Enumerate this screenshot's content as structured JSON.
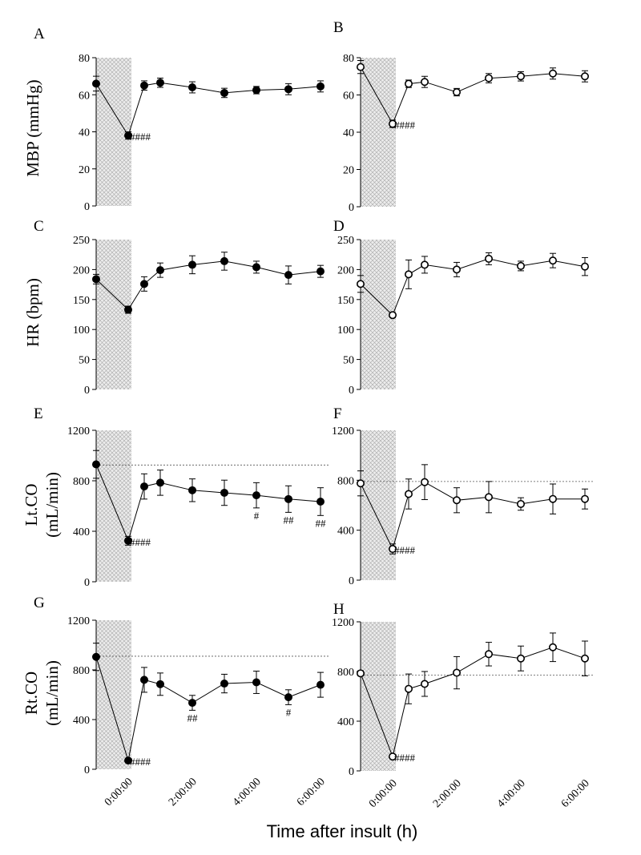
{
  "xlabel": "Time after insult (h)",
  "x_tick_labels": [
    "0:00:00",
    "2:00:00",
    "4:00:00",
    "6:00:00"
  ],
  "x_tick_values": [
    0,
    2,
    4,
    6
  ],
  "x_range": [
    -1,
    6
  ],
  "shaded_interval": [
    -1,
    0.1
  ],
  "ylabels": {
    "mbp": "MBP (mmHg)",
    "hr": "HR (bpm)",
    "co_lt_1": "Lt.CO",
    "co_lt_2": "(mL/min)",
    "co_rt_1": "Rt.CO",
    "co_rt_2": "(mL/min)"
  },
  "chart_data": [
    {
      "panel": "A",
      "type": "line",
      "marker": "filled",
      "ylim": [
        0,
        80
      ],
      "yticks": [
        0,
        20,
        40,
        60,
        80
      ],
      "y_tick_labels": [
        "0",
        "20",
        "40",
        "60",
        "80"
      ],
      "x": [
        -1,
        0,
        0.5,
        1,
        2,
        3,
        4,
        5,
        6
      ],
      "y": [
        66,
        38,
        65,
        66.5,
        64,
        61,
        62.5,
        63,
        64.5
      ],
      "err": [
        4,
        2,
        2.5,
        2.5,
        3,
        2.5,
        2,
        3,
        3
      ],
      "annotations": [
        {
          "text": "####",
          "x": 0,
          "y": 38
        }
      ]
    },
    {
      "panel": "B",
      "type": "line",
      "marker": "open",
      "ylim": [
        0,
        80
      ],
      "yticks": [
        0,
        20,
        40,
        60,
        80
      ],
      "y_tick_labels": [
        "0",
        "20",
        "40",
        "60",
        "80"
      ],
      "x": [
        -1,
        0,
        0.5,
        1,
        2,
        3,
        4,
        5,
        6
      ],
      "y": [
        75,
        44.5,
        66,
        67,
        61.5,
        69,
        70,
        71.5,
        70
      ],
      "err": [
        3.5,
        2,
        2,
        3,
        2,
        2.5,
        2.5,
        3,
        3
      ],
      "annotations": [
        {
          "text": "####",
          "x": 0,
          "y": 44.5
        }
      ]
    },
    {
      "panel": "C",
      "type": "line",
      "marker": "filled",
      "ylim": [
        0,
        250
      ],
      "yticks": [
        0,
        50,
        100,
        150,
        200,
        250
      ],
      "y_tick_labels": [
        "0",
        "50",
        "100",
        "150",
        "200",
        "250"
      ],
      "x": [
        -1,
        0,
        0.5,
        1,
        2,
        3,
        4,
        5,
        6
      ],
      "y": [
        184,
        133,
        176,
        199,
        208,
        214,
        204,
        191,
        197
      ],
      "err": [
        8,
        6,
        12,
        12,
        15,
        15,
        10,
        15,
        10
      ],
      "annotations": []
    },
    {
      "panel": "D",
      "type": "line",
      "marker": "open",
      "ylim": [
        0,
        250
      ],
      "yticks": [
        0,
        50,
        100,
        150,
        200,
        250
      ],
      "y_tick_labels": [
        "0",
        "50",
        "100",
        "150",
        "200",
        "250"
      ],
      "x": [
        -1,
        0,
        0.5,
        1,
        2,
        3,
        4,
        5,
        6
      ],
      "y": [
        176,
        124,
        192,
        208,
        200,
        218,
        206,
        215,
        205
      ],
      "err": [
        14,
        4,
        24,
        14,
        12,
        10,
        8,
        12,
        15
      ],
      "annotations": []
    },
    {
      "panel": "E",
      "type": "line",
      "marker": "filled",
      "ylim": [
        0,
        1200
      ],
      "yticks": [
        0,
        400,
        800,
        1200
      ],
      "y_tick_labels": [
        "0",
        "400",
        "800",
        "1200"
      ],
      "x": [
        -1,
        0,
        0.5,
        1,
        2,
        3,
        4,
        5,
        6
      ],
      "y": [
        930,
        325,
        755,
        785,
        725,
        705,
        685,
        655,
        635
      ],
      "err": [
        110,
        35,
        100,
        100,
        90,
        100,
        100,
        105,
        110
      ],
      "reference_line": 925,
      "annotations": [
        {
          "text": "####",
          "x": 0,
          "y": 325
        },
        {
          "text": "#",
          "x": 4,
          "y": 685
        },
        {
          "text": "##",
          "x": 5,
          "y": 655
        },
        {
          "text": "##",
          "x": 6,
          "y": 635
        }
      ]
    },
    {
      "panel": "F",
      "type": "line",
      "marker": "open",
      "ylim": [
        0,
        1200
      ],
      "yticks": [
        0,
        400,
        800,
        1200
      ],
      "y_tick_labels": [
        "0",
        "400",
        "800",
        "1200"
      ],
      "x": [
        -1,
        0,
        0.5,
        1,
        2,
        3,
        4,
        5,
        6
      ],
      "y": [
        775,
        250,
        690,
        785,
        640,
        665,
        610,
        650,
        650
      ],
      "err": [
        100,
        40,
        120,
        140,
        100,
        125,
        50,
        120,
        80
      ],
      "reference_line": 790,
      "annotations": [
        {
          "text": "####",
          "x": 0,
          "y": 250
        }
      ]
    },
    {
      "panel": "G",
      "type": "line",
      "marker": "filled",
      "ylim": [
        0,
        1200
      ],
      "yticks": [
        0,
        400,
        800,
        1200
      ],
      "y_tick_labels": [
        "0",
        "400",
        "800",
        "1200"
      ],
      "x": [
        -1,
        0,
        0.5,
        1,
        2,
        3,
        4,
        5,
        6
      ],
      "y": [
        905,
        70,
        720,
        685,
        535,
        690,
        700,
        580,
        680
      ],
      "err": [
        110,
        10,
        100,
        90,
        60,
        75,
        90,
        60,
        100
      ],
      "reference_line": 910,
      "annotations": [
        {
          "text": "####",
          "x": 0,
          "y": 70
        },
        {
          "text": "##",
          "x": 2,
          "y": 535
        },
        {
          "text": "#",
          "x": 5,
          "y": 580
        }
      ]
    },
    {
      "panel": "H",
      "type": "line",
      "marker": "open",
      "ylim": [
        0,
        1200
      ],
      "yticks": [
        0,
        400,
        800,
        1200
      ],
      "y_tick_labels": [
        "0",
        "400",
        "800",
        "1200"
      ],
      "x": [
        -1,
        0,
        0.5,
        1,
        2,
        3,
        4,
        5,
        6
      ],
      "y": [
        785,
        115,
        660,
        700,
        790,
        940,
        905,
        995,
        905
      ],
      "err": [
        20,
        15,
        120,
        100,
        130,
        95,
        100,
        115,
        140
      ],
      "reference_line": 770,
      "annotations": [
        {
          "text": "####",
          "x": 0,
          "y": 115
        }
      ]
    }
  ]
}
